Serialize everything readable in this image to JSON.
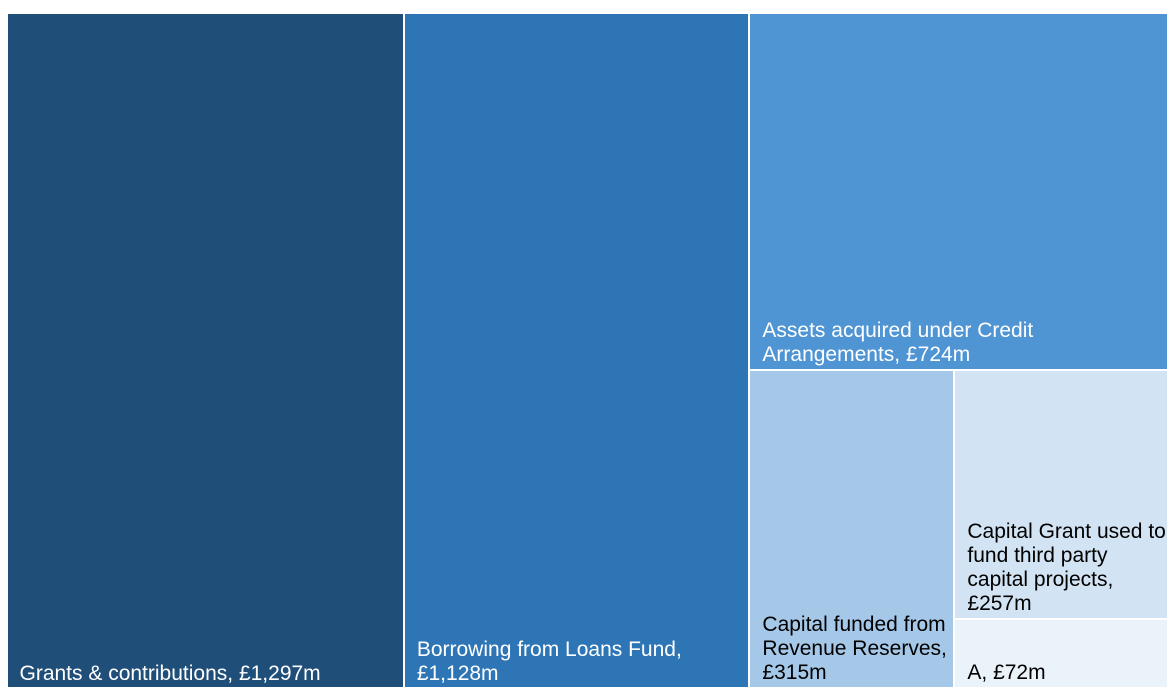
{
  "chart_data": {
    "type": "treemap",
    "categories": [
      "Grants & contributions,",
      "Borrowing from Loans Fund,",
      "Assets acquired under Credit Arrangements,",
      "Capital funded from Revenue Reserves,",
      "Capital Grant used to fund third party capital projects,",
      "A,"
    ],
    "values": [
      1297,
      1128,
      724,
      315,
      257,
      72
    ],
    "value_labels": [
      "£1,297m",
      "£1,128m",
      "£724m",
      "£315m",
      "£257m",
      "£72m"
    ],
    "colors": [
      "#1f4e79",
      "#2e75b6",
      "#4f94d3",
      "#a5c8e8",
      "#d2e3f3",
      "#ebf3fa"
    ],
    "label_colors": [
      "#ffffff",
      "#ffffff",
      "#ffffff",
      "#000000",
      "#000000",
      "#000000"
    ]
  }
}
